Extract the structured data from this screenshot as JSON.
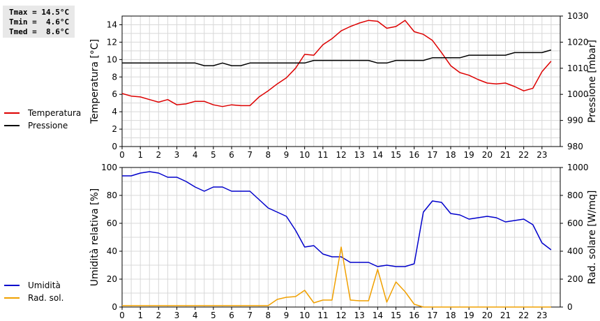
{
  "stats": {
    "tmax": "Tmax = 14.5°C",
    "tmin": "Tmin =  4.6°C",
    "tmed": "Tmed =  8.6°C"
  },
  "chart_data": [
    {
      "type": "line",
      "xlim": [
        0,
        24
      ],
      "x_ticks": [
        "0",
        "1",
        "2",
        "3",
        "4",
        "5",
        "6",
        "7",
        "8",
        "9",
        "10",
        "11",
        "12",
        "13",
        "14",
        "15",
        "16",
        "17",
        "18",
        "19",
        "20",
        "21",
        "22",
        "23"
      ],
      "ylabel_left": "Temperatura [°C]",
      "ylim_left": [
        0,
        15
      ],
      "yticks_left": [
        0,
        2,
        4,
        6,
        8,
        10,
        12,
        14
      ],
      "ylabel_right": "Pressione [mbar]",
      "ylim_right": [
        980,
        1030
      ],
      "yticks_right": [
        980,
        990,
        1000,
        1010,
        1020,
        1030
      ],
      "grid": true,
      "series": [
        {
          "name": "Temperatura",
          "axis": "left",
          "color": "#dd0000",
          "x": [
            0,
            0.5,
            1,
            1.5,
            2,
            2.5,
            3,
            3.5,
            4,
            4.5,
            5,
            5.5,
            6,
            6.5,
            7,
            7.5,
            8,
            8.5,
            9,
            9.5,
            10,
            10.5,
            11,
            11.5,
            12,
            12.5,
            13,
            13.5,
            14,
            14.5,
            15,
            15.5,
            16,
            16.5,
            17,
            17.5,
            18,
            18.5,
            19,
            19.5,
            20,
            20.5,
            21,
            21.5,
            22,
            22.5,
            23,
            23.5
          ],
          "values": [
            6.1,
            5.8,
            5.7,
            5.4,
            5.1,
            5.4,
            4.8,
            4.9,
            5.2,
            5.2,
            4.8,
            4.6,
            4.8,
            4.7,
            4.7,
            5.7,
            6.4,
            7.2,
            7.9,
            9.0,
            10.6,
            10.5,
            11.7,
            12.4,
            13.3,
            13.8,
            14.2,
            14.5,
            14.4,
            13.6,
            13.8,
            14.5,
            13.2,
            12.9,
            12.2,
            10.8,
            9.3,
            8.5,
            8.2,
            7.7,
            7.3,
            7.2,
            7.3,
            6.9,
            6.4,
            6.7,
            8.6,
            9.8
          ]
        },
        {
          "name": "Pressione",
          "axis": "right",
          "color": "#000000",
          "x": [
            0,
            0.5,
            1,
            1.5,
            2,
            2.5,
            3,
            3.5,
            4,
            4.5,
            5,
            5.5,
            6,
            6.5,
            7,
            7.5,
            8,
            8.5,
            9,
            9.5,
            10,
            10.5,
            11,
            11.5,
            12,
            12.5,
            13,
            13.5,
            14,
            14.5,
            15,
            15.5,
            16,
            16.5,
            17,
            17.5,
            18,
            18.5,
            19,
            19.5,
            20,
            20.5,
            21,
            21.5,
            22,
            22.5,
            23,
            23.5
          ],
          "values": [
            1012,
            1012,
            1012,
            1012,
            1012,
            1012,
            1012,
            1012,
            1012,
            1011,
            1011,
            1012,
            1011,
            1011,
            1012,
            1012,
            1012,
            1012,
            1012,
            1012,
            1012,
            1013,
            1013,
            1013,
            1013,
            1013,
            1013,
            1013,
            1012,
            1012,
            1013,
            1013,
            1013,
            1013,
            1014,
            1014,
            1014,
            1014,
            1015,
            1015,
            1015,
            1015,
            1015,
            1016,
            1016,
            1016,
            1016,
            1017
          ]
        }
      ]
    },
    {
      "type": "line",
      "xlim": [
        0,
        24
      ],
      "x_ticks": [
        "0",
        "1",
        "2",
        "3",
        "4",
        "5",
        "6",
        "7",
        "8",
        "9",
        "10",
        "11",
        "12",
        "13",
        "14",
        "15",
        "16",
        "17",
        "18",
        "19",
        "20",
        "21",
        "22",
        "23"
      ],
      "ylabel_left": "Umidità relativa [%]",
      "ylim_left": [
        0,
        100
      ],
      "yticks_left": [
        0,
        20,
        40,
        60,
        80,
        100
      ],
      "ylabel_right": "Rad. solare [W/mq]",
      "ylim_right": [
        0,
        1000
      ],
      "yticks_right": [
        0,
        200,
        400,
        600,
        800,
        1000
      ],
      "grid": true,
      "series": [
        {
          "name": "Umidità",
          "axis": "left",
          "color": "#0000cc",
          "x": [
            0,
            0.5,
            1,
            1.5,
            2,
            2.5,
            3,
            3.5,
            4,
            4.5,
            5,
            5.5,
            6,
            6.5,
            7,
            7.5,
            8,
            8.5,
            9,
            9.5,
            10,
            10.5,
            11,
            11.5,
            12,
            12.5,
            13,
            13.5,
            14,
            14.5,
            15,
            15.5,
            16,
            16.5,
            17,
            17.5,
            18,
            18.5,
            19,
            19.5,
            20,
            20.5,
            21,
            21.5,
            22,
            22.5,
            23,
            23.5
          ],
          "values": [
            94,
            94,
            96,
            97,
            96,
            93,
            93,
            90,
            86,
            83,
            86,
            86,
            83,
            83,
            83,
            77,
            71,
            68,
            65,
            55,
            43,
            44,
            38,
            36,
            36,
            32,
            32,
            32,
            29,
            30,
            29,
            29,
            31,
            68,
            76,
            75,
            67,
            66,
            63,
            64,
            65,
            64,
            61,
            62,
            63,
            59,
            46,
            41
          ]
        },
        {
          "name": "Rad. sol.",
          "axis": "right",
          "color": "#f0a000",
          "x": [
            0,
            0.5,
            1,
            1.5,
            2,
            2.5,
            3,
            3.5,
            4,
            4.5,
            5,
            5.5,
            6,
            6.5,
            7,
            7.5,
            8,
            8.5,
            9,
            9.5,
            10,
            10.5,
            11,
            11.5,
            12,
            12.5,
            13,
            13.5,
            14,
            14.5,
            15,
            15.5,
            16,
            16.5,
            17,
            17.5,
            18,
            18.5,
            19,
            19.5,
            20,
            20.5,
            21,
            21.5,
            22,
            22.5,
            23,
            23.5
          ],
          "values": [
            10,
            10,
            10,
            10,
            10,
            10,
            10,
            10,
            10,
            10,
            10,
            10,
            10,
            10,
            10,
            10,
            10,
            55,
            70,
            75,
            120,
            30,
            50,
            50,
            430,
            50,
            45,
            45,
            270,
            35,
            180,
            110,
            20,
            0,
            0,
            0,
            0,
            0,
            0,
            0,
            0,
            0,
            0,
            0,
            0,
            0,
            0,
            0
          ]
        }
      ]
    }
  ]
}
